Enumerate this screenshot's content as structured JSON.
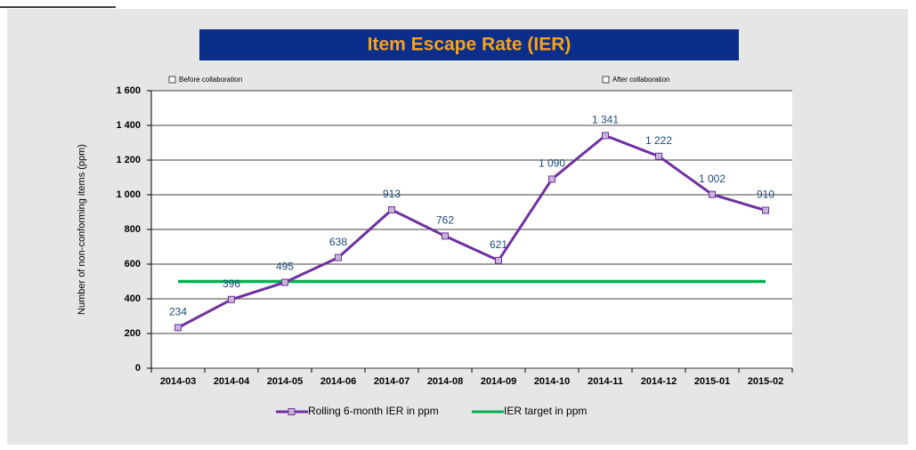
{
  "chart_data": {
    "type": "line",
    "title": "Item Escape Rate (IER)",
    "y_label": "Number of non-conforming items (ppm)",
    "annotations": [
      "Before collaboration",
      "After collaboration"
    ],
    "categories": [
      "2014-03",
      "2014-04",
      "2014-05",
      "2014-06",
      "2014-07",
      "2014-08",
      "2014-09",
      "2014-10",
      "2014-11",
      "2014-12",
      "2015-01",
      "2015-02"
    ],
    "series": [
      {
        "name": "Rolling 6-month IER in ppm",
        "color": "#7030a0",
        "marker_fill": "#c8b4d8",
        "values": [
          234,
          396,
          495,
          638,
          913,
          762,
          621,
          1090,
          1341,
          1222,
          1002,
          910
        ],
        "value_labels": [
          "234",
          "396",
          "495",
          "638",
          "913",
          "762",
          "621",
          "1 090",
          "1 341",
          "1 222",
          "1 002",
          "910"
        ]
      },
      {
        "name": "IER target in ppm",
        "color": "#00b050",
        "values": [
          500,
          500,
          500,
          500,
          500,
          500,
          500,
          500,
          500,
          500,
          500,
          500
        ]
      }
    ],
    "ylim": [
      0,
      1600
    ],
    "yticks": [
      0,
      200,
      400,
      600,
      800,
      {
        "value": 1000,
        "label": "1 000"
      },
      {
        "value": 1200,
        "label": "1 200"
      },
      {
        "value": 1400,
        "label": "1 400"
      },
      {
        "value": 1600,
        "label": "1 600"
      }
    ],
    "grid": true,
    "legend": "bottom"
  }
}
